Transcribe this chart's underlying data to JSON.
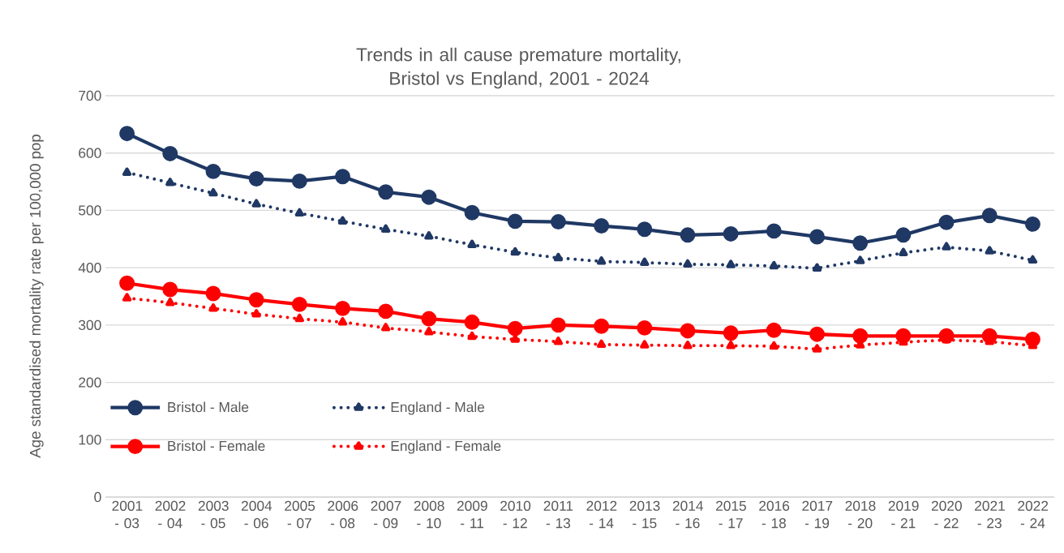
{
  "chart_data": {
    "type": "line",
    "title": "Trends in all cause premature mortality, Bristol vs England, 2001 - 2024",
    "ylabel": "Age standardised mortality rate per 100,000 pop",
    "categories": [
      "2001 - 03",
      "2002 - 04",
      "2003 - 05",
      "2004 - 06",
      "2005 - 07",
      "2006 - 08",
      "2007 - 09",
      "2008 - 10",
      "2009 - 11",
      "2010 - 12",
      "2011 - 13",
      "2012 - 14",
      "2013 - 15",
      "2014 - 16",
      "2015 - 17",
      "2016 - 18",
      "2017 - 19",
      "2018 - 20",
      "2019 - 21",
      "2020 - 22",
      "2021 - 23",
      "2022 - 24"
    ],
    "series": [
      {
        "name": "Bristol - Male",
        "color": "#1f3864",
        "marker": "circle",
        "line_style": "solid",
        "values": [
          634,
          599,
          568,
          555,
          551,
          559,
          532,
          523,
          496,
          481,
          480,
          473,
          467,
          457,
          459,
          464,
          454,
          443,
          457,
          479,
          491,
          476
        ]
      },
      {
        "name": "England - Male",
        "color": "#1f3864",
        "marker": "triangle",
        "line_style": "dotted",
        "values": [
          566,
          548,
          530,
          511,
          495,
          481,
          467,
          455,
          440,
          427,
          417,
          411,
          409,
          406,
          405,
          403,
          399,
          412,
          426,
          436,
          429,
          413
        ]
      },
      {
        "name": "Bristol - Female",
        "color": "#ff0000",
        "marker": "circle",
        "line_style": "solid",
        "values": [
          373,
          362,
          355,
          344,
          336,
          329,
          324,
          311,
          305,
          294,
          300,
          298,
          295,
          290,
          286,
          291,
          284,
          281,
          281,
          281,
          281,
          275
        ]
      },
      {
        "name": "England - Female",
        "color": "#ff0000",
        "marker": "triangle",
        "line_style": "dotted",
        "values": [
          347,
          339,
          329,
          319,
          311,
          305,
          295,
          288,
          280,
          275,
          271,
          266,
          265,
          264,
          264,
          263,
          258,
          265,
          270,
          274,
          271,
          264
        ]
      }
    ],
    "ylim": [
      0,
      700
    ],
    "yticks": [
      0,
      100,
      200,
      300,
      400,
      500,
      600,
      700
    ],
    "grid": "y",
    "legend": "bottom left"
  }
}
